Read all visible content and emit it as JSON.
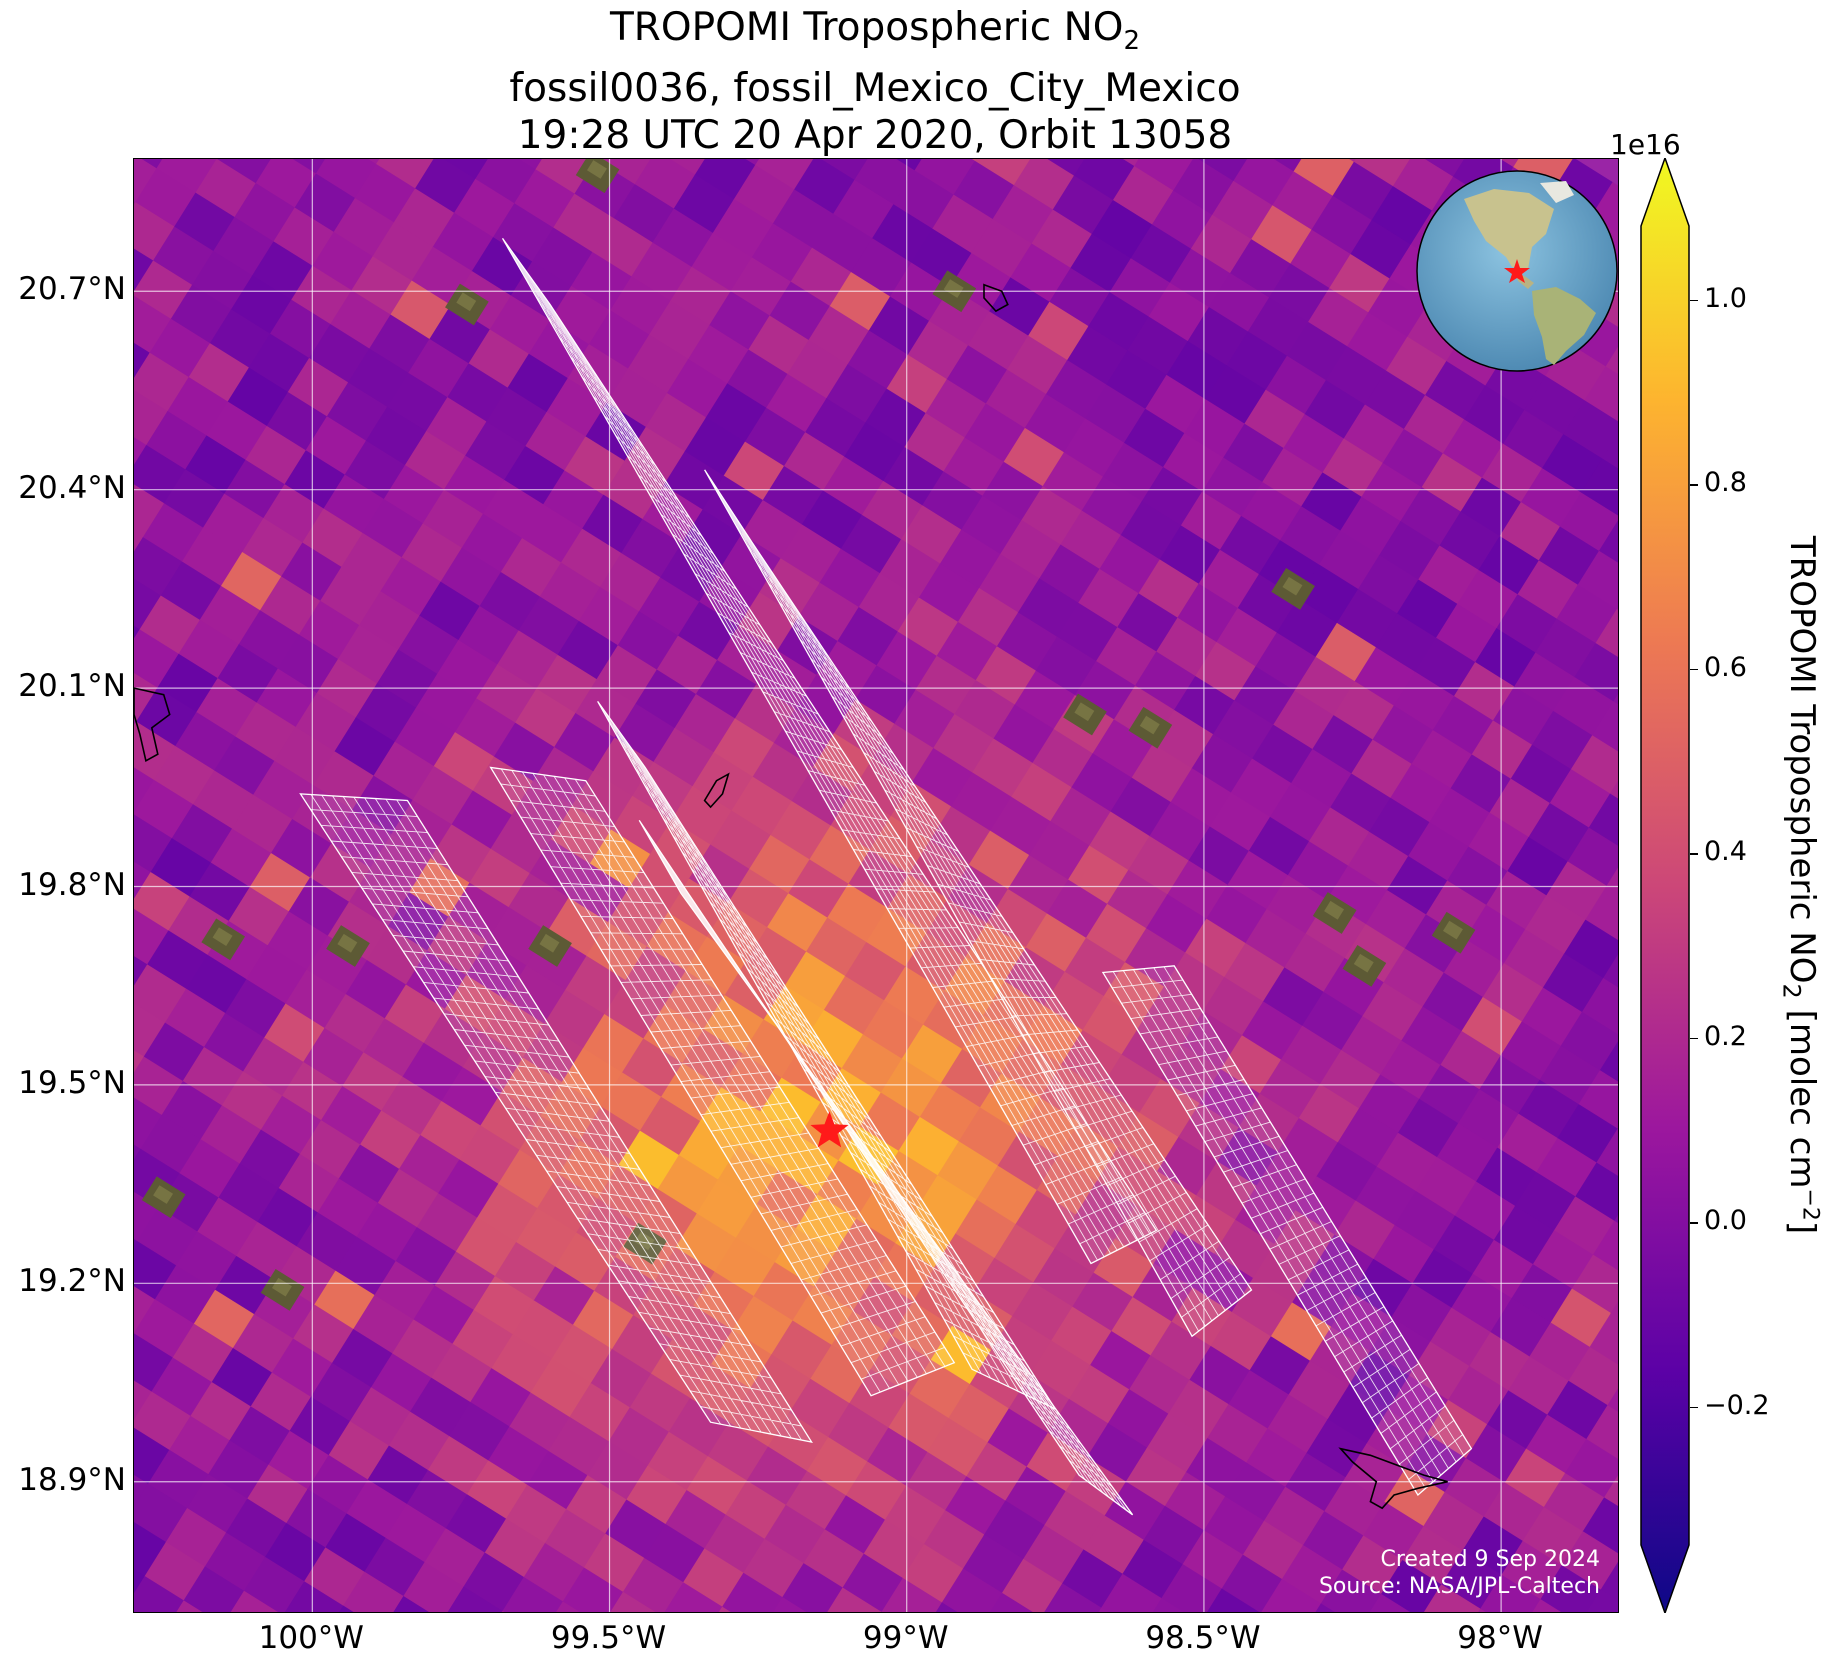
{
  "title": {
    "line1_prefix": "TROPOMI Tropospheric NO",
    "line1_sub": "2",
    "line2": "fossil0036, fossil_Mexico_City_Mexico",
    "line3": "19:28 UTC 20 Apr 2020, Orbit 13058"
  },
  "map": {
    "lon_range": [
      -100.3,
      -97.8
    ],
    "lat_range": [
      18.7,
      20.9
    ],
    "lat_labels": [
      {
        "value": 20.7,
        "text": "20.7°N"
      },
      {
        "value": 20.4,
        "text": "20.4°N"
      },
      {
        "value": 20.1,
        "text": "20.1°N"
      },
      {
        "value": 19.8,
        "text": "19.8°N"
      },
      {
        "value": 19.5,
        "text": "19.5°N"
      },
      {
        "value": 19.2,
        "text": "19.2°N"
      },
      {
        "value": 18.9,
        "text": "18.9°N"
      }
    ],
    "lon_labels": [
      {
        "value": -100.0,
        "text": "100°W"
      },
      {
        "value": -99.5,
        "text": "99.5°W"
      },
      {
        "value": -99.0,
        "text": "99°W"
      },
      {
        "value": -98.5,
        "text": "98.5°W"
      },
      {
        "value": -98.0,
        "text": "98°W"
      }
    ],
    "gridlines": true,
    "background_color": "#9a25a6",
    "target_marker": {
      "lon": -99.13,
      "lat": 19.43,
      "color": "#ff1a1a",
      "symbol": "star"
    },
    "globe_inset": {
      "position": "top-right",
      "ocean_color": "#6aa6cc",
      "land_color": "#c8c28e",
      "marker_color": "#ff1a1a"
    }
  },
  "credits": {
    "line1": "Created 9 Sep 2024",
    "line2": "Source: NASA/JPL-Caltech"
  },
  "colorbar": {
    "exponent_label": "1e16",
    "label_prefix": "TROPOMI Tropospheric NO",
    "label_sub": "2",
    "label_mid": " [molec cm",
    "label_sup": "−2",
    "label_end": "]",
    "range": [
      -0.35,
      1.08
    ],
    "ticks": [
      {
        "value": 1.0,
        "text": "1.0"
      },
      {
        "value": 0.8,
        "text": "0.8"
      },
      {
        "value": 0.6,
        "text": "0.6"
      },
      {
        "value": 0.4,
        "text": "0.4"
      },
      {
        "value": 0.2,
        "text": "0.2"
      },
      {
        "value": 0.0,
        "text": "0.0"
      },
      {
        "value": -0.2,
        "text": "−0.2"
      }
    ],
    "colormap": [
      "#0d0887",
      "#5c01a6",
      "#9c179e",
      "#cc4778",
      "#ed7953",
      "#fdb42f",
      "#f0f921"
    ]
  }
}
